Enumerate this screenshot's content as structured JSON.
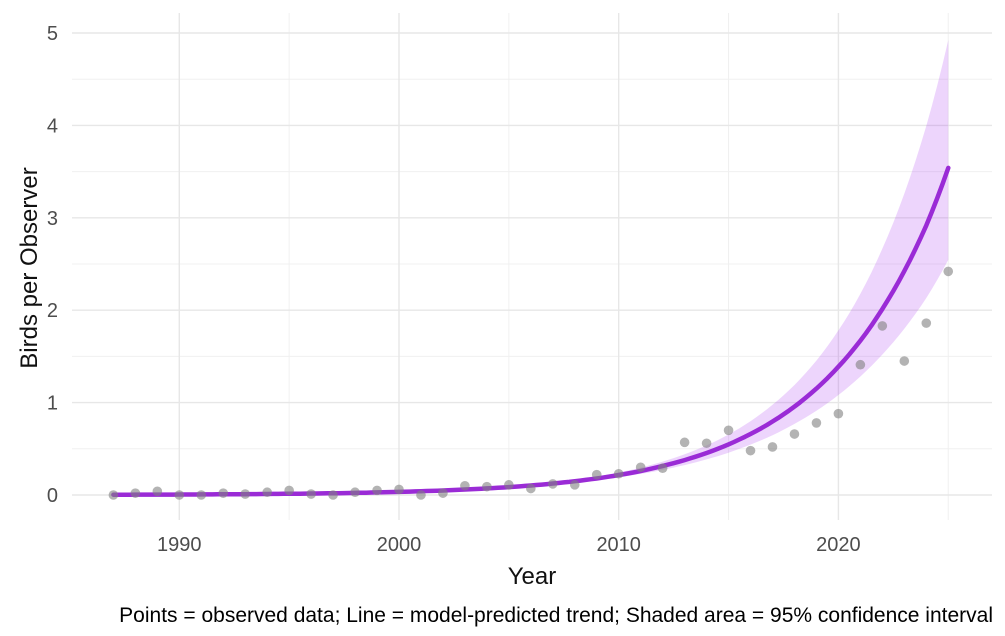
{
  "chart_data": {
    "type": "line",
    "title": "",
    "xlabel": "Year",
    "ylabel": "Birds per Observer",
    "caption": "Points = observed data; Line = model-predicted trend; Shaded area = 95% confidence interval",
    "x_axis": {
      "major_ticks": [
        1990,
        2000,
        2010,
        2020
      ],
      "minor_ticks": [
        1995,
        2005,
        2015,
        2025
      ],
      "range": [
        1985.1,
        2026.9
      ]
    },
    "y_axis": {
      "major_ticks": [
        0,
        1,
        2,
        3,
        4,
        5
      ],
      "minor_ticks": [
        0.5,
        1.5,
        2.5,
        3.5,
        4.5
      ],
      "range": [
        -0.27,
        5.22
      ]
    },
    "x": [
      1987,
      1988,
      1989,
      1990,
      1991,
      1992,
      1993,
      1994,
      1995,
      1996,
      1997,
      1998,
      1999,
      2000,
      2001,
      2002,
      2003,
      2004,
      2005,
      2006,
      2007,
      2008,
      2009,
      2010,
      2011,
      2012,
      2013,
      2014,
      2015,
      2016,
      2017,
      2018,
      2019,
      2020,
      2021,
      2022,
      2023,
      2024,
      2025
    ],
    "series": [
      {
        "name": "observed",
        "style": "points",
        "values": [
          0.0,
          0.02,
          0.04,
          0.0,
          0.0,
          0.02,
          0.01,
          0.03,
          0.05,
          0.01,
          0.0,
          0.03,
          0.05,
          0.06,
          0.0,
          0.02,
          0.1,
          0.09,
          0.11,
          0.07,
          0.12,
          0.11,
          0.22,
          0.23,
          0.3,
          0.29,
          0.57,
          0.56,
          0.7,
          0.48,
          0.52,
          0.66,
          0.78,
          0.88,
          1.41,
          1.83,
          1.45,
          1.86,
          2.42
        ]
      },
      {
        "name": "model_trend",
        "style": "line",
        "values": [
          0.003,
          0.004,
          0.004,
          0.005,
          0.006,
          0.008,
          0.009,
          0.011,
          0.013,
          0.016,
          0.019,
          0.023,
          0.028,
          0.034,
          0.041,
          0.049,
          0.059,
          0.071,
          0.085,
          0.103,
          0.124,
          0.149,
          0.179,
          0.216,
          0.26,
          0.314,
          0.378,
          0.455,
          0.548,
          0.66,
          0.795,
          0.957,
          1.152,
          1.388,
          1.671,
          2.012,
          2.423,
          2.918,
          3.54
        ]
      },
      {
        "name": "ci_lower",
        "style": "ribbon_edge",
        "values": [
          0.003,
          0.004,
          0.004,
          0.005,
          0.006,
          0.008,
          0.009,
          0.011,
          0.013,
          0.016,
          0.019,
          0.022,
          0.027,
          0.033,
          0.039,
          0.047,
          0.056,
          0.067,
          0.079,
          0.095,
          0.113,
          0.135,
          0.16,
          0.192,
          0.228,
          0.272,
          0.324,
          0.385,
          0.458,
          0.545,
          0.647,
          0.769,
          0.912,
          1.082,
          1.283,
          1.52,
          1.8,
          2.132,
          2.545
        ]
      },
      {
        "name": "ci_upper",
        "style": "ribbon_edge",
        "values": [
          0.003,
          0.004,
          0.004,
          0.005,
          0.006,
          0.008,
          0.009,
          0.011,
          0.013,
          0.016,
          0.02,
          0.024,
          0.029,
          0.035,
          0.043,
          0.052,
          0.062,
          0.076,
          0.092,
          0.112,
          0.136,
          0.165,
          0.2,
          0.244,
          0.296,
          0.362,
          0.441,
          0.537,
          0.655,
          0.799,
          0.976,
          1.191,
          1.455,
          1.781,
          2.177,
          2.664,
          3.261,
          3.995,
          4.924
        ]
      }
    ],
    "legend_position": "none",
    "grid": "on",
    "colors": {
      "trend_line": "#9a2bd6",
      "ribbon_fill": "#a020f0",
      "point_fill": "#808080",
      "grid_major": "#e7e7e7",
      "grid_minor": "#f0f0f0",
      "tick_text": "#4d4d4d",
      "title_text": "#111111",
      "caption_text": "#000000",
      "background": "#ffffff"
    }
  }
}
